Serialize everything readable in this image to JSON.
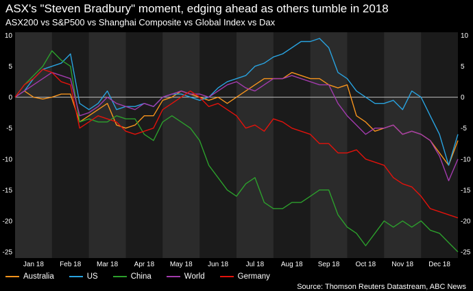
{
  "header": {
    "title": "ASX's \"Steven Bradbury\" moment, edging ahead as others tumble in 2018",
    "subtitle": "ASX200 vs S&P500 vs Shanghai Composite vs Global Index vs Dax"
  },
  "source": "Source: Thomson Reuters Datastream, ABC News",
  "chart_data": {
    "type": "line",
    "x_categories": [
      "Jan 18",
      "Feb 18",
      "Mar 18",
      "Apr 18",
      "May 18",
      "Jun 18",
      "Jul 18",
      "Aug 18",
      "Sep 18",
      "Oct 18",
      "Nov 18",
      "Dec 18"
    ],
    "y_ticks": [
      "10",
      "5",
      "0",
      "-5",
      "-10",
      "-15",
      "-20",
      "-25"
    ],
    "ylim": [
      -26,
      10.5
    ],
    "grid": "vertical month bands, zero line",
    "legend_position": "bottom",
    "x": [
      0,
      0.25,
      0.5,
      0.75,
      1,
      1.25,
      1.5,
      1.75,
      2,
      2.25,
      2.5,
      2.75,
      3,
      3.25,
      3.5,
      3.75,
      4,
      4.25,
      4.5,
      4.75,
      5,
      5.25,
      5.5,
      5.75,
      6,
      6.25,
      6.5,
      6.75,
      7,
      7.25,
      7.5,
      7.75,
      8,
      8.25,
      8.5,
      8.75,
      9,
      9.25,
      9.5,
      9.75,
      10,
      10.25,
      10.5,
      10.75,
      11,
      11.25,
      11.5,
      11.75,
      12
    ],
    "series": [
      {
        "name": "Australia",
        "color": "#f7941d",
        "values": [
          0,
          1,
          0,
          -0.3,
          0,
          0.5,
          0.5,
          -4,
          -3,
          -2,
          -1,
          -4.5,
          -5,
          -4.5,
          -3,
          -3,
          -0.5,
          0,
          1,
          0.5,
          0,
          -0.5,
          0,
          -1,
          0,
          1,
          2,
          3,
          3,
          3,
          4,
          3.5,
          3,
          3,
          2,
          1.5,
          2,
          -3,
          -4,
          -5.5,
          -5,
          -4.5,
          -6,
          -5.5,
          -6,
          -7,
          -9,
          -11,
          -7
        ]
      },
      {
        "name": "US",
        "color": "#29a3e0",
        "values": [
          0,
          1,
          3,
          4.5,
          5,
          5.5,
          7,
          -1,
          -2,
          -1,
          1,
          -2,
          -1.5,
          -1.5,
          -1,
          -1.5,
          0,
          0.5,
          0.5,
          0,
          -0.5,
          0,
          1.5,
          2.5,
          3,
          3.5,
          5,
          5.5,
          6.5,
          7,
          8,
          9,
          9,
          9.5,
          8,
          4,
          3,
          1,
          0,
          -1,
          -1,
          -0.5,
          -2,
          1,
          0,
          -3,
          -6,
          -11,
          -6
        ]
      },
      {
        "name": "China",
        "color": "#2ca02c",
        "values": [
          0,
          2,
          3.5,
          5,
          7.5,
          6,
          5,
          -4,
          -3.5,
          -4,
          -4,
          -3,
          -3.5,
          -3.5,
          -6,
          -7,
          -4,
          -3,
          -4,
          -5,
          -7,
          -11,
          -13,
          -15,
          -16,
          -14,
          -13,
          -17,
          -18,
          -18,
          -17,
          -17,
          -16,
          -15,
          -15,
          -19,
          -21,
          -22,
          -24,
          -22,
          -20,
          -21,
          -20,
          -21,
          -20,
          -21.5,
          -22,
          -23.5,
          -25
        ]
      },
      {
        "name": "World",
        "color": "#a23bad",
        "values": [
          0,
          1,
          2,
          3,
          4,
          3.5,
          3,
          -3,
          -2.5,
          -1.5,
          0,
          -1,
          -1.5,
          -2,
          -1,
          -1.5,
          0,
          0.5,
          1,
          0.5,
          0.5,
          0,
          1,
          2,
          2.5,
          1.5,
          1,
          2,
          3,
          3,
          3.5,
          3,
          2.5,
          2,
          2,
          -1,
          -3,
          -4.5,
          -6,
          -5,
          -5,
          -4.5,
          -6,
          -5.5,
          -6,
          -7,
          -9.5,
          -13.5,
          -10
        ]
      },
      {
        "name": "Germany",
        "color": "#e3120b",
        "values": [
          0,
          2,
          3,
          4.5,
          4,
          2.5,
          2,
          -5,
          -4,
          -3,
          -3.5,
          -4,
          -5.5,
          -6,
          -5.5,
          -5,
          -2,
          -1,
          0,
          1,
          0,
          -1.5,
          -1,
          -2,
          -3,
          -5,
          -4.5,
          -5.5,
          -3.5,
          -4,
          -5,
          -5.5,
          -6,
          -7.5,
          -7.5,
          -9,
          -9,
          -8.5,
          -10,
          -10.5,
          -11,
          -13,
          -14,
          -14.5,
          -16,
          -18,
          -18.5,
          -19,
          -19.5
        ]
      }
    ]
  }
}
